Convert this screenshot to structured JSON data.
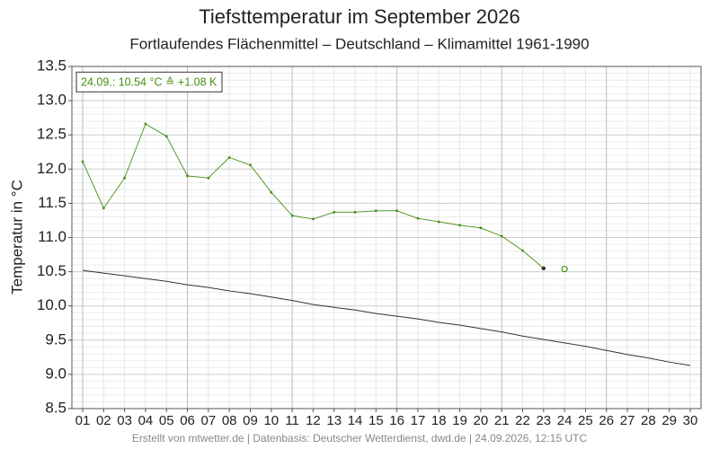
{
  "chart_data": {
    "type": "line",
    "title": "Tiefsttemperatur im September 2026",
    "subtitle": "Fortlaufendes Flächenmittel – Deutschland – Klimamittel 1961-1990",
    "y_label": "Temperatur in °C",
    "annotation": "24.09.: 10.54 °C ≙ +1.08 K",
    "footer": "Erstellt von mtwetter.de | Datenbasis: Deutscher Wetterdienst, dwd.de | 24.09.2026, 12:15 UTC",
    "categories": [
      "01",
      "02",
      "03",
      "04",
      "05",
      "06",
      "07",
      "08",
      "09",
      "10",
      "11",
      "12",
      "13",
      "14",
      "15",
      "16",
      "17",
      "18",
      "19",
      "20",
      "21",
      "22",
      "23",
      "24",
      "25",
      "26",
      "27",
      "28",
      "29",
      "30"
    ],
    "series": [
      {
        "color": "#3f8f10",
        "marker": "dot",
        "values": [
          12.11,
          11.43,
          11.87,
          12.66,
          12.48,
          11.9,
          11.87,
          12.17,
          12.06,
          11.66,
          11.32,
          11.27,
          11.37,
          11.37,
          11.39,
          11.39,
          11.28,
          11.23,
          11.18,
          11.14,
          11.02,
          10.81,
          10.55,
          null,
          null,
          null,
          null,
          null,
          null,
          null
        ]
      },
      {
        "color": "#3f8f10",
        "marker": "hollow",
        "values": [
          null,
          null,
          null,
          null,
          null,
          null,
          null,
          null,
          null,
          null,
          null,
          null,
          null,
          null,
          null,
          null,
          null,
          null,
          null,
          null,
          null,
          null,
          null,
          10.54,
          null,
          null,
          null,
          null,
          null,
          null
        ]
      },
      {
        "color": "#333333",
        "marker": "none",
        "values": [
          10.52,
          10.48,
          10.44,
          10.4,
          10.36,
          10.31,
          10.27,
          10.22,
          10.18,
          10.13,
          10.08,
          10.02,
          9.98,
          9.94,
          9.89,
          9.85,
          9.81,
          9.76,
          9.72,
          9.67,
          9.62,
          9.56,
          9.51,
          9.46,
          9.41,
          9.35,
          9.29,
          9.24,
          9.18,
          9.13
        ]
      }
    ],
    "ylim": [
      8.5,
      13.5
    ],
    "yticks": [
      8.5,
      {
        "value": 9,
        "label": "9.0"
      },
      9.5,
      {
        "value": 10,
        "label": "10.0"
      },
      10.5,
      {
        "value": 11,
        "label": "11.0"
      },
      11.5,
      {
        "value": 12,
        "label": "12.0"
      },
      12.5,
      {
        "value": 13,
        "label": "13.0"
      },
      13.5
    ],
    "grid": true
  }
}
